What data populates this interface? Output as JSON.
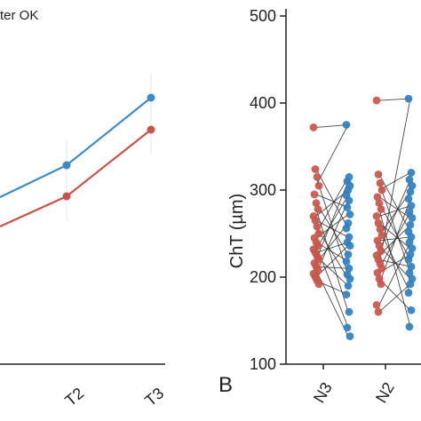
{
  "chart_data": [
    {
      "type": "line",
      "legend_text": "ter OK",
      "categories": [
        "T2",
        "T3"
      ],
      "series": [
        {
          "color": "#3b8cc6",
          "values": [
            256,
            225
          ]
        },
        {
          "color": "#c9554a",
          "values": [
            240,
            235
          ]
        }
      ],
      "panel_visible": "partially cropped (left side cut off)",
      "grid": false
    },
    {
      "type": "scatter",
      "panel_label": "B",
      "ylabel": "ChT (µm)",
      "ylim": [
        100,
        520
      ],
      "yticks": [
        "100",
        "200",
        "300",
        "400",
        "500"
      ],
      "categories": [
        "N3",
        "N2"
      ],
      "grid": false,
      "series": [
        {
          "color": "#c9554a",
          "values_N3": [
            372,
            324,
            315,
            305,
            295,
            285,
            278,
            270,
            265,
            258,
            250,
            245,
            240,
            236,
            232,
            228,
            224,
            220,
            216,
            212,
            208,
            204,
            200,
            196,
            192
          ],
          "values_N2": [
            403,
            318,
            308,
            300,
            292,
            285,
            278,
            270,
            262,
            255,
            248,
            242,
            236,
            230,
            225,
            220,
            215,
            210,
            205,
            198,
            192,
            168,
            160
          ]
        },
        {
          "color": "#2f7fc1",
          "values_N3": [
            375,
            315,
            310,
            305,
            300,
            294,
            288,
            280,
            272,
            262,
            256,
            246,
            240,
            236,
            226,
            218,
            210,
            203,
            198,
            190,
            180,
            160,
            142,
            132
          ],
          "values_N2": [
            405,
            320,
            312,
            305,
            298,
            290,
            282,
            275,
            268,
            260,
            252,
            246,
            240,
            233,
            226,
            220,
            212,
            205,
            198,
            192,
            182,
            162,
            143
          ]
        }
      ]
    }
  ]
}
